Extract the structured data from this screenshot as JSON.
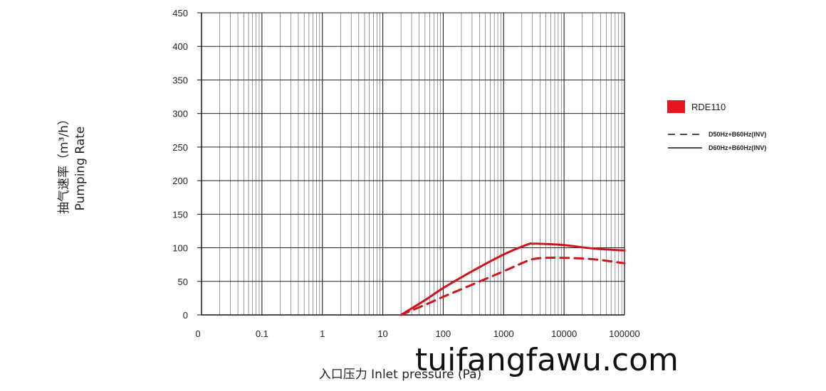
{
  "chart_data": {
    "type": "line",
    "ylabel_cn": "抽气速率（m³/h）",
    "ylabel_en": "Pumping Rate",
    "xlabel": "入口压力 Inlet pressure (Pa)",
    "x_scale": "log",
    "xlim": [
      0.01,
      100000
    ],
    "ylim": [
      0,
      450
    ],
    "x_ticks": [
      0.01,
      0.1,
      1,
      10,
      100,
      1000,
      10000,
      100000
    ],
    "x_tick_labels": [
      "0",
      "0.1",
      "1",
      "10",
      "100",
      "1000",
      "10000",
      "100000"
    ],
    "y_ticks": [
      0,
      50,
      100,
      150,
      200,
      250,
      300,
      350,
      400,
      450
    ],
    "y_tick_labels": [
      "0",
      "50",
      "100",
      "150",
      "200",
      "250",
      "300",
      "350",
      "400",
      "450"
    ],
    "grid": true,
    "legend_position": "right",
    "model_color": "#e8141e",
    "series": [
      {
        "name": "D60Hz+B60Hz(INV)",
        "style": "solid",
        "color": "#d0141e",
        "x": [
          20,
          50,
          100,
          300,
          1000,
          2500,
          3000,
          4000,
          10000,
          30000,
          100000
        ],
        "y": [
          0,
          22,
          40,
          65,
          90,
          105,
          106,
          106,
          104,
          99,
          96
        ]
      },
      {
        "name": "D50Hz+B60Hz(INV)",
        "style": "dashed",
        "color": "#d0141e",
        "x": [
          20,
          50,
          100,
          300,
          1000,
          2000,
          3000,
          5000,
          10000,
          30000,
          100000
        ],
        "y": [
          0,
          15,
          27,
          45,
          65,
          77,
          83,
          85,
          85,
          83,
          77
        ]
      }
    ],
    "legend": {
      "model": "RDE110",
      "dashed_label": "D50Hz+B60Hz(INV)",
      "solid_label": "D60Hz+B60Hz(INV)"
    }
  },
  "watermark": "tuifangfawu.com"
}
